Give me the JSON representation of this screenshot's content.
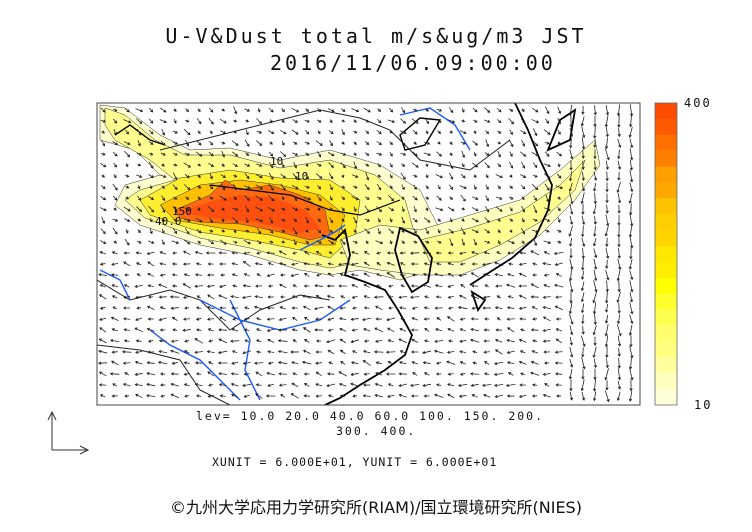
{
  "title": {
    "line1": "U-V&Dust total m/s&ug/m3 JST",
    "line2": "2016/11/06.09:00:00"
  },
  "colorbar": {
    "max_label": "400",
    "min_label": "10",
    "colors": [
      "#ff4c00",
      "#ff5a00",
      "#ff7000",
      "#ff8000",
      "#ffa000",
      "#ffa800",
      "#ffc400",
      "#ffd000",
      "#ffd400",
      "#ffe800",
      "#ffee00",
      "#ffff00",
      "#ffff30",
      "#ffff50",
      "#ffff70",
      "#ffff80",
      "#ffffa0",
      "#ffffc0",
      "#ffffd8"
    ]
  },
  "contour_labels": [
    "150",
    "40.0",
    "10",
    "10"
  ],
  "levels": {
    "line1": "lev= 10.0 20.0 40.0 60.0 100. 150. 200.",
    "line2": "300. 400."
  },
  "units": "XUNIT = 6.000E+01, YUNIT = 6.000E+01",
  "footer": "©九州大学応用力学研究所(RIAM)/国立環境研究所(NIES)",
  "colors": {
    "coast": "#000000",
    "river": "#1a5cff",
    "frame": "#444444"
  }
}
